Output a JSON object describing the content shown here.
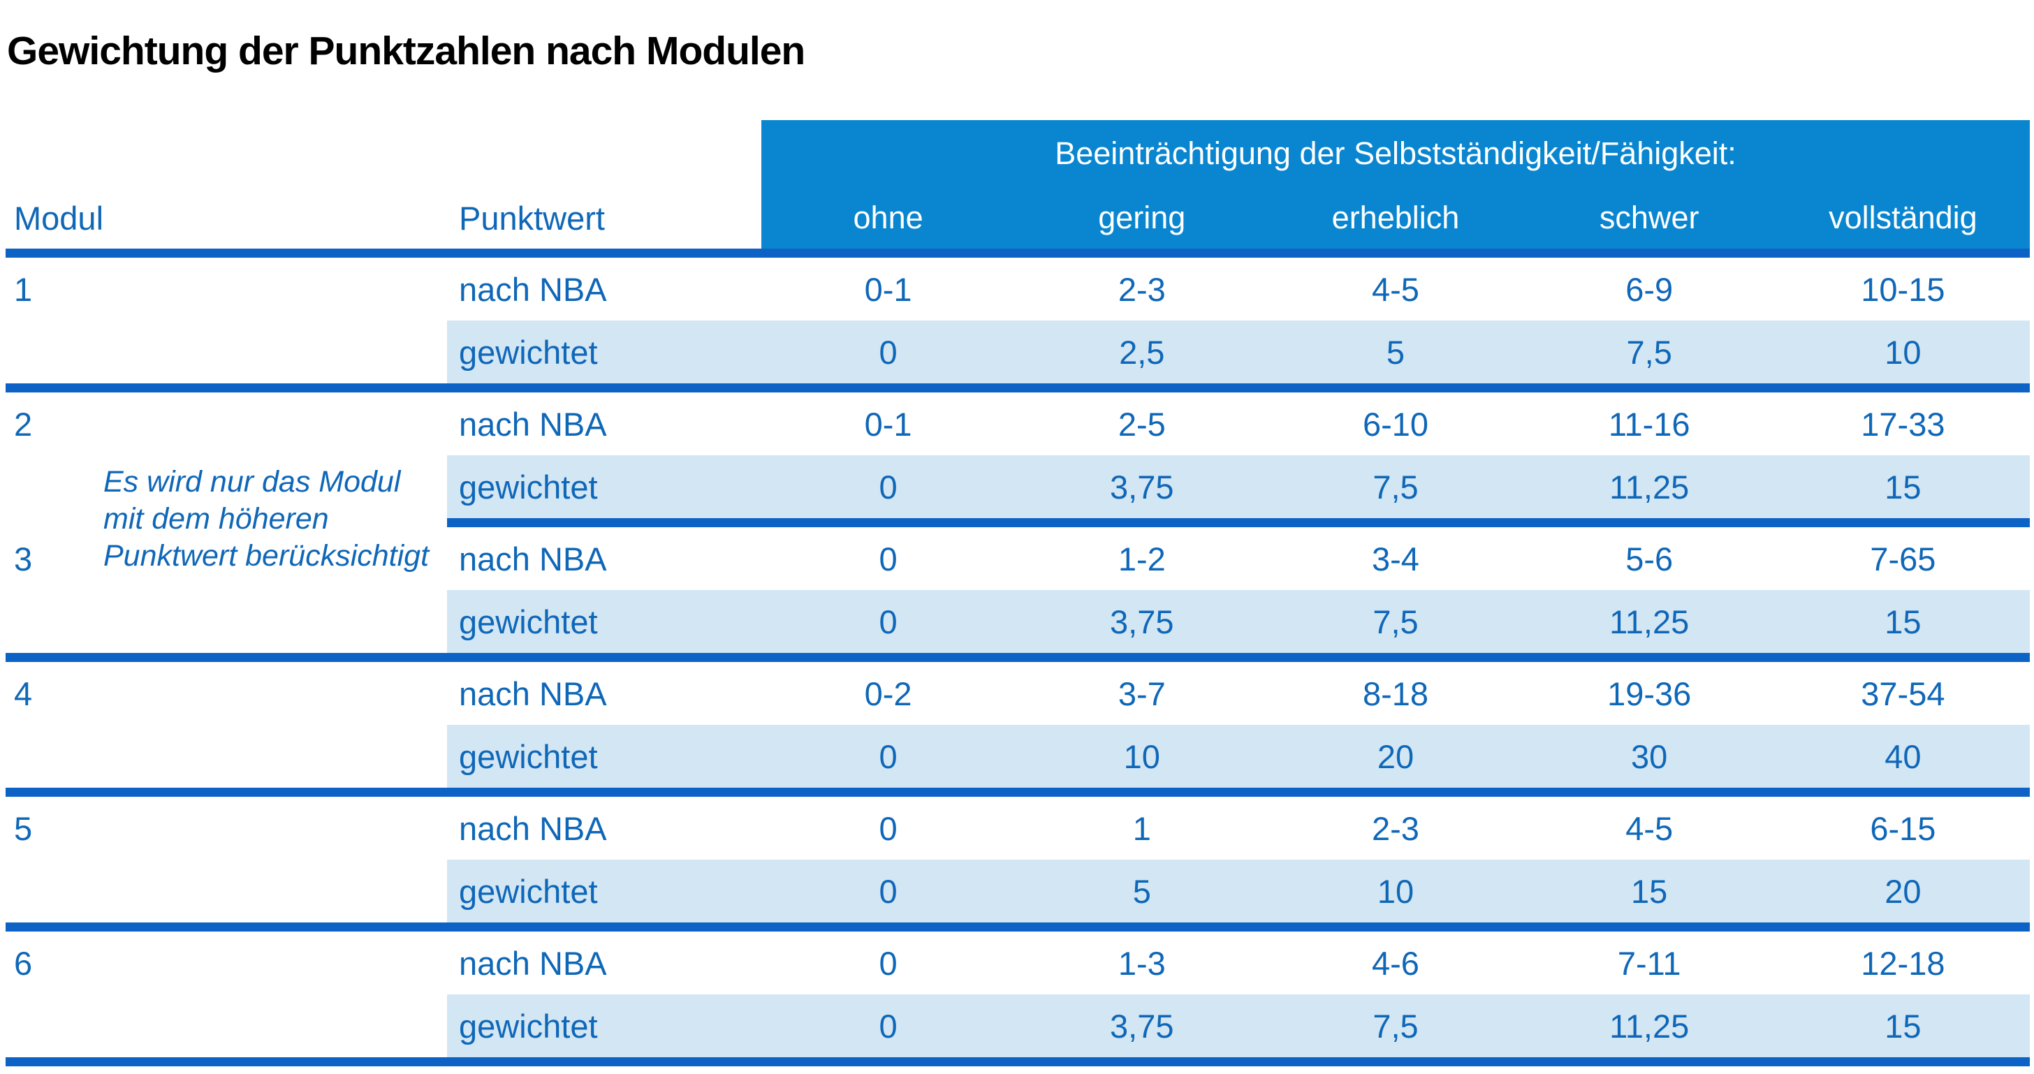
{
  "title": "Gewichtung der Punktzahlen nach Modulen",
  "table": {
    "col_headers": {
      "modul": "Modul",
      "punktwert": "Punktwert"
    },
    "group_header": "Beeinträchtigung der Selbstständigkeit/Fähigkeit:",
    "severity_levels": [
      "ohne",
      "gering",
      "erheblich",
      "schwer",
      "vollständig"
    ],
    "row_labels": {
      "nba": "nach NBA",
      "weighted": "gewichtet"
    },
    "note": {
      "line1": "Es wird nur das Modul",
      "line2": "mit dem höheren",
      "line3": "Punktwert berücksichtigt"
    },
    "modules": [
      {
        "id": "1",
        "nba": [
          "0-1",
          "2-3",
          "4-5",
          "6-9",
          "10-15"
        ],
        "weighted": [
          "0",
          "2,5",
          "5",
          "7,5",
          "10"
        ]
      },
      {
        "id": "2",
        "nba": [
          "0-1",
          "2-5",
          "6-10",
          "11-16",
          "17-33"
        ],
        "weighted": [
          "0",
          "3,75",
          "7,5",
          "11,25",
          "15"
        ]
      },
      {
        "id": "3",
        "nba": [
          "0",
          "1-2",
          "3-4",
          "5-6",
          "7-65"
        ],
        "weighted": [
          "0",
          "3,75",
          "7,5",
          "11,25",
          "15"
        ]
      },
      {
        "id": "4",
        "nba": [
          "0-2",
          "3-7",
          "8-18",
          "19-36",
          "37-54"
        ],
        "weighted": [
          "0",
          "10",
          "20",
          "30",
          "40"
        ]
      },
      {
        "id": "5",
        "nba": [
          "0",
          "1",
          "2-3",
          "4-5",
          "6-15"
        ],
        "weighted": [
          "0",
          "5",
          "10",
          "15",
          "20"
        ]
      },
      {
        "id": "6",
        "nba": [
          "0",
          "1-3",
          "4-6",
          "7-11",
          "12-18"
        ],
        "weighted": [
          "0",
          "3,75",
          "7,5",
          "11,25",
          "15"
        ]
      }
    ]
  },
  "colors": {
    "header_blue": "#0a86d0",
    "rule_blue": "#0d63c5",
    "text_blue": "#0f67b8",
    "band_blue": "#d3e6f4",
    "title_black": "#000000",
    "header_text": "#ffffff"
  }
}
